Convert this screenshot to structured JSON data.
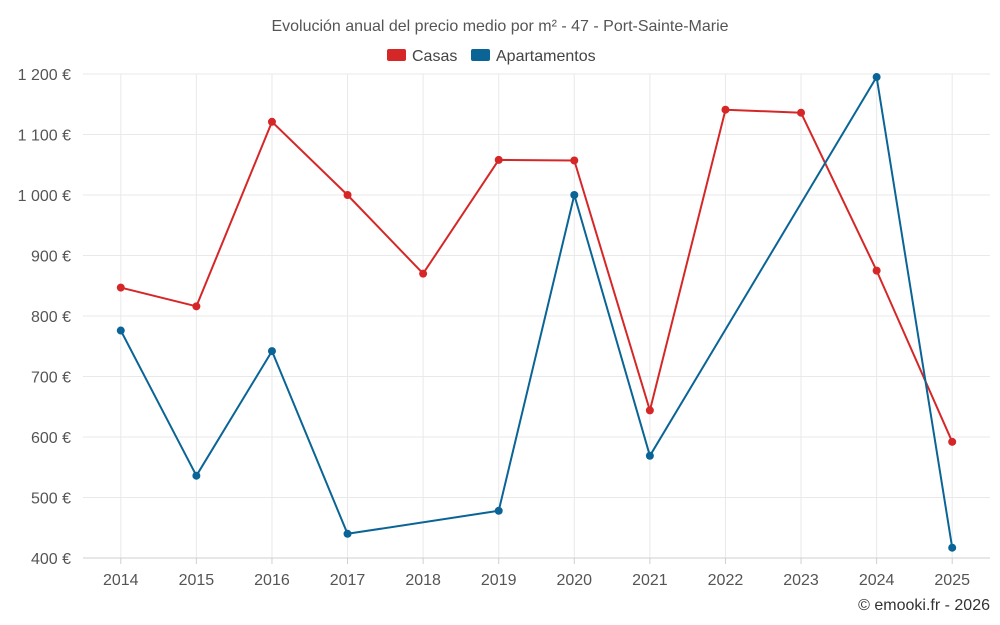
{
  "chart_data": {
    "type": "line",
    "title": "Evolución anual del precio medio por m² - 47 - Port-Sainte-Marie",
    "categories": [
      "2014",
      "2015",
      "2016",
      "2017",
      "2018",
      "2019",
      "2020",
      "2021",
      "2022",
      "2023",
      "2024",
      "2025"
    ],
    "ylim": [
      400,
      1200
    ],
    "yticks": [
      400,
      500,
      600,
      700,
      800,
      900,
      1000,
      1100,
      1200
    ],
    "ytick_labels": [
      "400 €",
      "500 €",
      "600 €",
      "700 €",
      "800 €",
      "900 €",
      "1 000 €",
      "1 100 €",
      "1 200 €"
    ],
    "legend_position": "top-center",
    "grid": true,
    "series": [
      {
        "name": "Casas",
        "color": "#d62728",
        "values": [
          847,
          816,
          1121,
          1000,
          870,
          1058,
          1057,
          644,
          1141,
          1136,
          875,
          592
        ]
      },
      {
        "name": "Apartamentos",
        "color": "#0a6496",
        "values": [
          776,
          536,
          742,
          440,
          null,
          478,
          1000,
          569,
          null,
          null,
          1195,
          417
        ]
      }
    ]
  },
  "credit": "© emooki.fr - 2026"
}
